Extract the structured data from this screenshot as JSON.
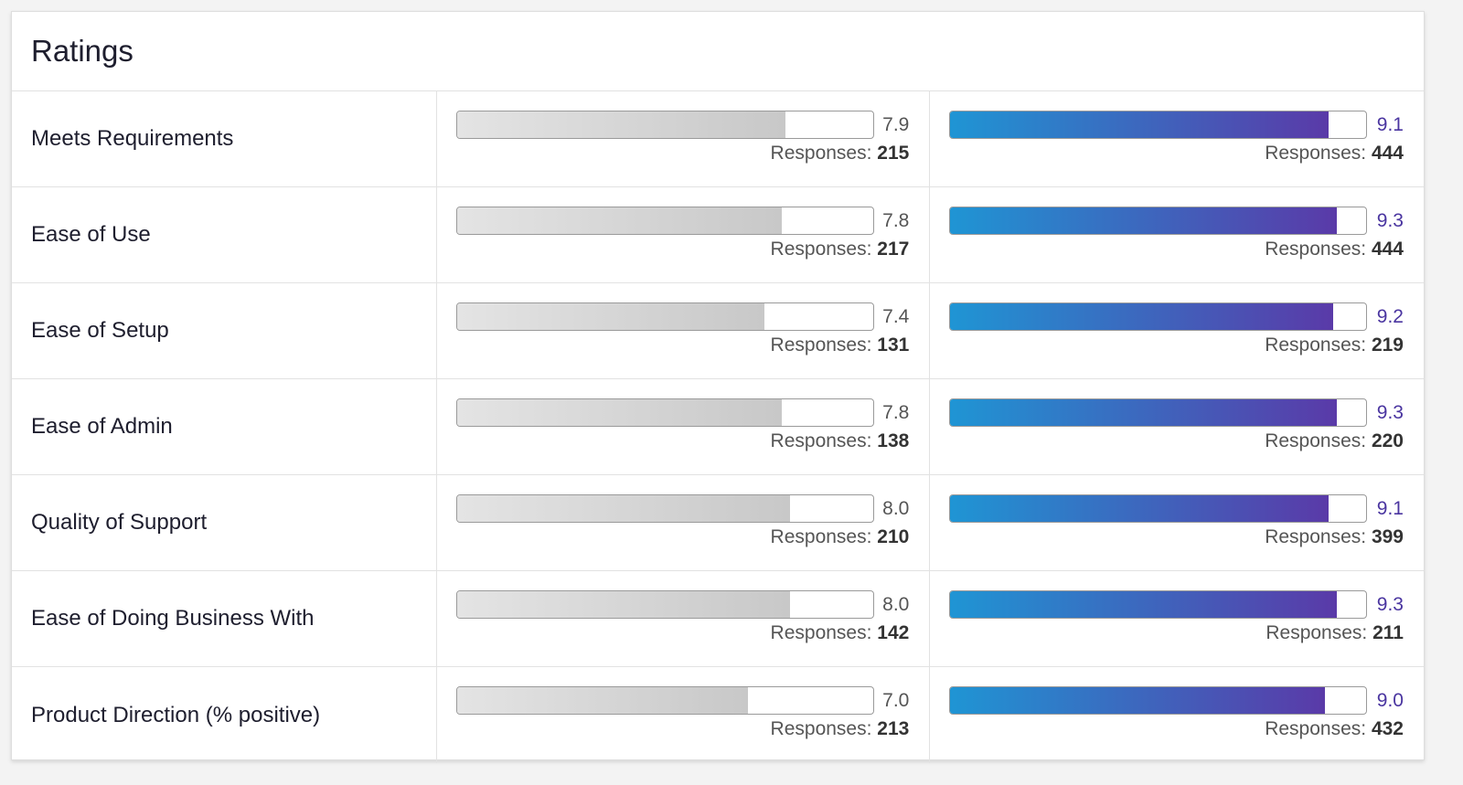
{
  "title": "Ratings",
  "responses_label": "Responses:",
  "colors": {
    "grey_start": "#e4e4e4",
    "grey_end": "#c8c8c8",
    "blue_start": "#1f95d4",
    "blue_end": "#5a3aa8",
    "blue_text": "#4a35a0"
  },
  "rows": [
    {
      "label": "Meets Requirements",
      "a": {
        "score": "7.9",
        "responses": "215",
        "fill_pct": 79
      },
      "b": {
        "score": "9.1",
        "responses": "444",
        "fill_pct": 91
      }
    },
    {
      "label": "Ease of Use",
      "a": {
        "score": "7.8",
        "responses": "217",
        "fill_pct": 78
      },
      "b": {
        "score": "9.3",
        "responses": "444",
        "fill_pct": 93
      }
    },
    {
      "label": "Ease of Setup",
      "a": {
        "score": "7.4",
        "responses": "131",
        "fill_pct": 74
      },
      "b": {
        "score": "9.2",
        "responses": "219",
        "fill_pct": 92
      }
    },
    {
      "label": "Ease of Admin",
      "a": {
        "score": "7.8",
        "responses": "138",
        "fill_pct": 78
      },
      "b": {
        "score": "9.3",
        "responses": "220",
        "fill_pct": 93
      }
    },
    {
      "label": "Quality of Support",
      "a": {
        "score": "8.0",
        "responses": "210",
        "fill_pct": 80
      },
      "b": {
        "score": "9.1",
        "responses": "399",
        "fill_pct": 91
      }
    },
    {
      "label": "Ease of Doing Business With",
      "a": {
        "score": "8.0",
        "responses": "142",
        "fill_pct": 80
      },
      "b": {
        "score": "9.3",
        "responses": "211",
        "fill_pct": 93
      }
    },
    {
      "label": "Product Direction (% positive)",
      "a": {
        "score": "7.0",
        "responses": "213",
        "fill_pct": 70
      },
      "b": {
        "score": "9.0",
        "responses": "432",
        "fill_pct": 90
      }
    }
  ]
}
